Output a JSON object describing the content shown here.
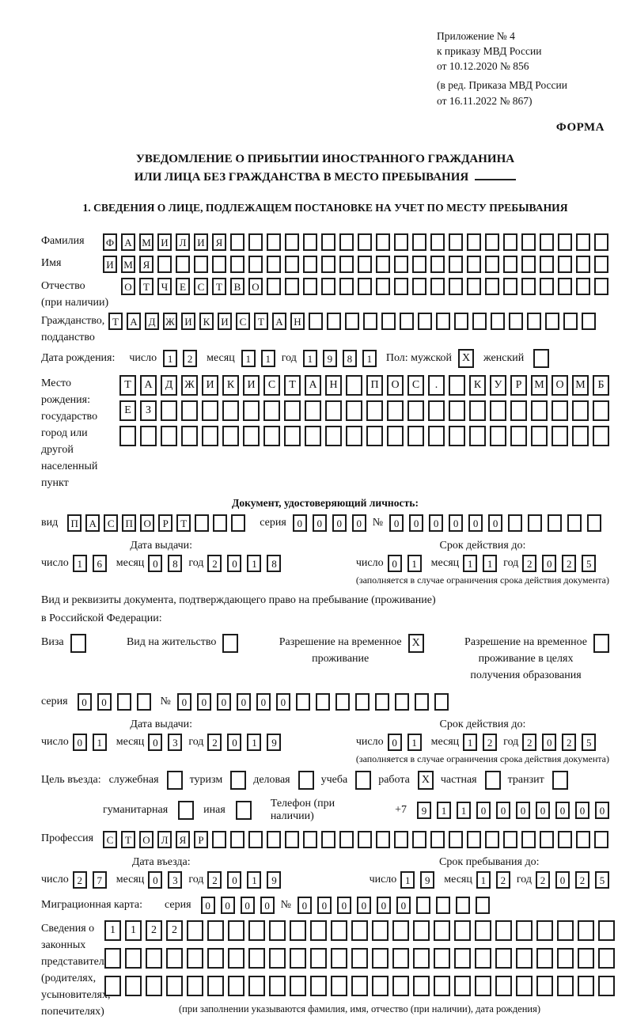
{
  "header": {
    "line1": "Приложение № 4",
    "line2": "к приказу МВД России",
    "line3": "от 10.12.2020 № 856",
    "line4": "(в ред. Приказа МВД России",
    "line5": "от 16.11.2022 № 867)",
    "forma": "ФОРМА"
  },
  "title": {
    "line1": "УВЕДОМЛЕНИЕ О ПРИБЫТИИ ИНОСТРАННОГО ГРАЖДАНИНА",
    "line2": "ИЛИ ЛИЦА БЕЗ ГРАЖДАНСТВА В МЕСТО ПРЕБЫВАНИЯ"
  },
  "section1_heading": "1. СВЕДЕНИЯ О ЛИЦЕ, ПОДЛЕЖАЩЕМ ПОСТАНОВКЕ НА УЧЕТ ПО МЕСТУ ПРЕБЫВАНИЯ",
  "surname": {
    "label": "Фамилия",
    "cells": {
      "text": "ФАМИЛИЯ",
      "count": 28
    }
  },
  "given_name": {
    "label": "Имя",
    "cells": {
      "text": "ИМЯ",
      "count": 28
    }
  },
  "patronymic": {
    "label1": "Отчество",
    "label2": "(при наличии)",
    "cells": {
      "text": "ОТЧЕСТВО",
      "count": 27
    }
  },
  "citizenship": {
    "label1": "Гражданство,",
    "label2": "подданство",
    "cells": {
      "text": "ТАДЖИКИСТАН",
      "count": 27
    }
  },
  "birth": {
    "label": "Дата рождения:",
    "day_label": "число",
    "day": {
      "text": "12",
      "count": 2
    },
    "month_label": "месяц",
    "month": {
      "text": "11",
      "count": 2
    },
    "year_label": "год",
    "year": {
      "text": "1981",
      "count": 4
    },
    "sex_label": "Пол: мужской",
    "male": {
      "text": "X",
      "count": 1
    },
    "female_label": "женский",
    "female": {
      "text": "",
      "count": 1
    }
  },
  "birthplace": {
    "label_lines": [
      "Место рождения:",
      "государство",
      "город или другой",
      "населенный пункт"
    ],
    "row1": {
      "text": "ТАДЖИКИСТАН ПОС. КУРМОМБ",
      "count": 24
    },
    "row2": {
      "text": "ЕЗ",
      "count": 24
    },
    "row3": {
      "text": "",
      "count": 24
    }
  },
  "identity_doc": {
    "heading": "Документ, удостоверяющий личность:",
    "type_label": "вид",
    "type": {
      "text": "ПАСПОРТ",
      "count": 10
    },
    "series_label": "серия",
    "series": {
      "text": "0000",
      "count": 4
    },
    "number_label": "№",
    "number": {
      "text": "000000",
      "count": 11
    },
    "issued_title": "Дата выдачи:",
    "issued_day_label": "число",
    "issued_day": {
      "text": "16",
      "count": 2
    },
    "issued_month_label": "месяц",
    "issued_month": {
      "text": "08",
      "count": 2
    },
    "issued_year_label": "год",
    "issued_year": {
      "text": "2018",
      "count": 4
    },
    "valid_title": "Срок действия до:",
    "valid_day_label": "число",
    "valid_day": {
      "text": "01",
      "count": 2
    },
    "valid_month_label": "месяц",
    "valid_month": {
      "text": "11",
      "count": 2
    },
    "valid_year_label": "год",
    "valid_year": {
      "text": "2025",
      "count": 4
    },
    "note": "(заполняется в случае ограничения срока действия документа)"
  },
  "residence_doc": {
    "line1": "Вид и реквизиты документа, подтверждающего право на пребывание (проживание)",
    "line2": "в Российской Федерации:",
    "visa_label": "Виза",
    "visa": {
      "text": "",
      "count": 1
    },
    "vnj_label": "Вид на жительство",
    "vnj": {
      "text": "",
      "count": 1
    },
    "rvp_line1": "Разрешение на временное",
    "rvp_line2": "проживание",
    "rvp": {
      "text": "X",
      "count": 1
    },
    "rvpo_line1": "Разрешение на временное",
    "rvpo_line2": "проживание в целях",
    "rvpo_line3": "получения образования",
    "rvpo": {
      "text": "",
      "count": 1
    },
    "series_label": "серия",
    "series": {
      "text": "00",
      "count": 4
    },
    "number_label": "№",
    "number": {
      "text": "000000",
      "count": 14
    },
    "issued_title": "Дата выдачи:",
    "issued_day_label": "число",
    "issued_day": {
      "text": "01",
      "count": 2
    },
    "issued_month_label": "месяц",
    "issued_month": {
      "text": "03",
      "count": 2
    },
    "issued_year_label": "год",
    "issued_year": {
      "text": "2019",
      "count": 4
    },
    "valid_title": "Срок действия до:",
    "valid_day_label": "число",
    "valid_day": {
      "text": "01",
      "count": 2
    },
    "valid_month_label": "месяц",
    "valid_month": {
      "text": "12",
      "count": 2
    },
    "valid_year_label": "год",
    "valid_year": {
      "text": "2025",
      "count": 4
    },
    "note": "(заполняется в случае ограничения срока действия документа)"
  },
  "purpose": {
    "label": "Цель въезда:",
    "opt1_label": "служебная",
    "opt1": {
      "text": "",
      "count": 1
    },
    "opt2_label": "туризм",
    "opt2": {
      "text": "",
      "count": 1
    },
    "opt3_label": "деловая",
    "opt3": {
      "text": "",
      "count": 1
    },
    "opt4_label": "учеба",
    "opt4": {
      "text": "",
      "count": 1
    },
    "opt5_label": "работа",
    "opt5": {
      "text": "X",
      "count": 1
    },
    "opt6_label": "частная",
    "opt6": {
      "text": "",
      "count": 1
    },
    "opt7_label": "транзит",
    "opt7": {
      "text": "",
      "count": 1
    },
    "opt8_label": "гуманитарная",
    "opt8": {
      "text": "",
      "count": 1
    },
    "opt9_label": "иная",
    "opt9": {
      "text": "",
      "count": 1
    },
    "phone_label": "Телефон (при наличии)",
    "phone_prefix": "+7",
    "phone": {
      "text": "9110000000",
      "count": 10
    }
  },
  "profession": {
    "label": "Профессия",
    "cells": {
      "text": "СТОЛЯР",
      "count": 28
    }
  },
  "entry": {
    "entry_title": "Дата въезда:",
    "entry_day_label": "число",
    "entry_day": {
      "text": "27",
      "count": 2
    },
    "entry_month_label": "месяц",
    "entry_month": {
      "text": "03",
      "count": 2
    },
    "entry_year_label": "год",
    "entry_year": {
      "text": "2019",
      "count": 4
    },
    "stay_title": "Срок пребывания до:",
    "stay_day_label": "число",
    "stay_day": {
      "text": "19",
      "count": 2
    },
    "stay_month_label": "месяц",
    "stay_month": {
      "text": "12",
      "count": 2
    },
    "stay_year_label": "год",
    "stay_year": {
      "text": "2025",
      "count": 4
    }
  },
  "migration_card": {
    "label": "Миграционная карта:",
    "series_label": "серия",
    "series": {
      "text": "0000",
      "count": 4
    },
    "number_label": "№",
    "number": {
      "text": "000000",
      "count": 10
    }
  },
  "legal_reps": {
    "label_lines": [
      "Сведения о",
      "законных",
      "представителях",
      "(родителях,",
      "усыновителях,",
      "попечителях)"
    ],
    "row1": {
      "text": "1122",
      "count": 25
    },
    "row2": {
      "text": "",
      "count": 25
    },
    "row3": {
      "text": "",
      "count": 25
    },
    "note": "(при заполнении указываются фамилия, имя, отчество (при наличии), дата рождения)"
  }
}
